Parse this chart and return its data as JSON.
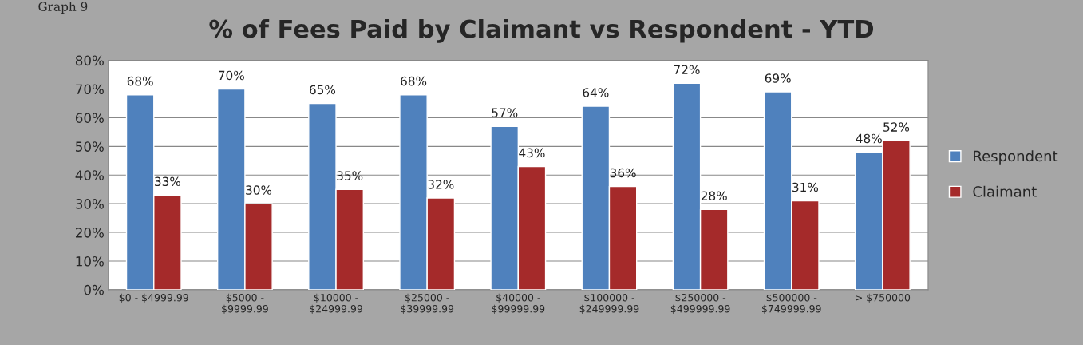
{
  "chart_data": {
    "type": "bar",
    "title": "% of Fees Paid by Claimant vs Respondent - YTD",
    "annotations": [
      "Graph 9"
    ],
    "categories": [
      "$0 - $4999.99",
      "$5000 -\n$9999.99",
      "$10000 -\n$24999.99",
      "$25000 -\n$39999.99",
      "$40000 -\n$99999.99",
      "$100000 -\n$249999.99",
      "$250000 -\n$499999.99",
      "$500000 -\n$749999.99",
      "> $750000"
    ],
    "series": [
      {
        "name": "Respondent",
        "color": "#4f81bd",
        "values": [
          68,
          70,
          65,
          68,
          57,
          64,
          72,
          69,
          48
        ],
        "value_labels": [
          "68%",
          "70%",
          "65%",
          "68%",
          "57%",
          "64%",
          "72%",
          "69%",
          "48%"
        ]
      },
      {
        "name": "Claimant",
        "color": "#a52a2a",
        "values": [
          33,
          30,
          35,
          32,
          43,
          36,
          28,
          31,
          52
        ],
        "value_labels": [
          "33%",
          "30%",
          "35%",
          "32%",
          "43%",
          "36%",
          "28%",
          "31%",
          "52%"
        ]
      }
    ],
    "ylim": [
      0,
      80
    ],
    "yticks": [
      {
        "value": 0,
        "label": "0%"
      },
      {
        "value": 10,
        "label": "10%"
      },
      {
        "value": 20,
        "label": "20%"
      },
      {
        "value": 30,
        "label": "30%"
      },
      {
        "value": 40,
        "label": "40%"
      },
      {
        "value": 50,
        "label": "50%"
      },
      {
        "value": 60,
        "label": "60%"
      },
      {
        "value": 70,
        "label": "70%"
      },
      {
        "value": 80,
        "label": "80%"
      }
    ],
    "grid": "y",
    "legend": "right"
  }
}
